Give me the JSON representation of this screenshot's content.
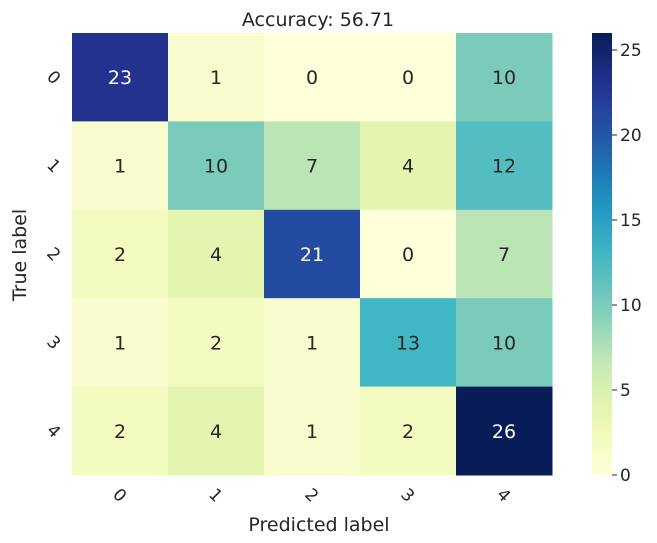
{
  "chart_data": {
    "type": "heatmap",
    "title": "Accuracy: 56.71",
    "xlabel": "Predicted label",
    "ylabel": "True label",
    "x_categories": [
      "0",
      "1",
      "2",
      "3",
      "4"
    ],
    "y_categories": [
      "0",
      "1",
      "2",
      "3",
      "4"
    ],
    "values": [
      [
        23,
        1,
        0,
        0,
        10
      ],
      [
        1,
        10,
        7,
        4,
        12
      ],
      [
        2,
        4,
        21,
        0,
        7
      ],
      [
        1,
        2,
        1,
        13,
        10
      ],
      [
        2,
        4,
        1,
        2,
        26
      ]
    ],
    "colormap": "YlGnBu",
    "vmin": 0,
    "vmax": 26,
    "colorbar_ticks": [
      0,
      5,
      10,
      15,
      20,
      25
    ],
    "colorbar_tick_labels": [
      "0",
      "5",
      "10",
      "15",
      "20",
      "25"
    ]
  }
}
